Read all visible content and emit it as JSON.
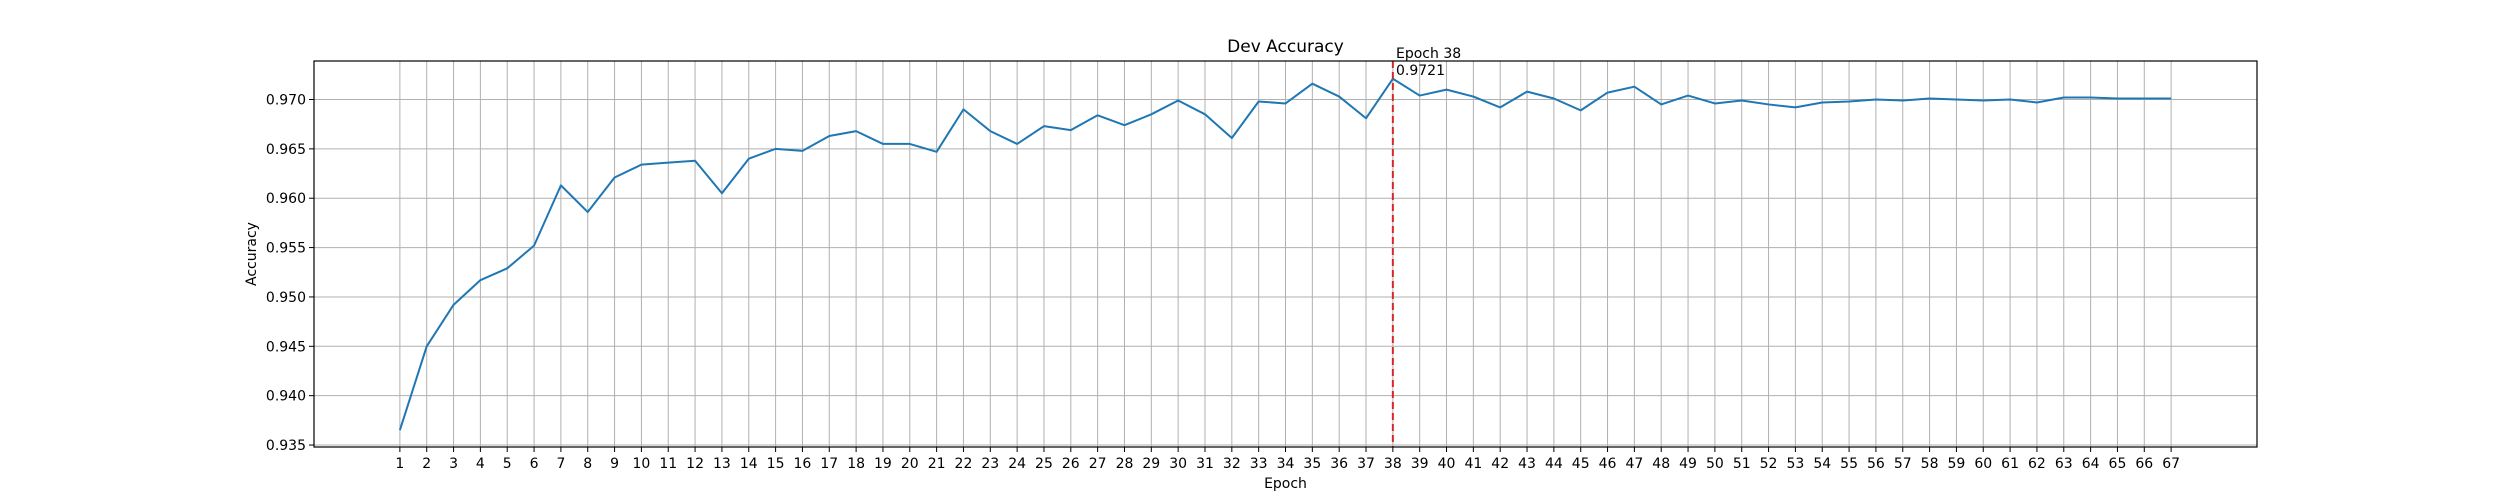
{
  "chart_data": {
    "type": "line",
    "title": "Dev Accuracy",
    "xlabel": "Epoch",
    "ylabel": "Accuracy",
    "x": [
      1,
      2,
      3,
      4,
      5,
      6,
      7,
      8,
      9,
      10,
      11,
      12,
      13,
      14,
      15,
      16,
      17,
      18,
      19,
      20,
      21,
      22,
      23,
      24,
      25,
      26,
      27,
      28,
      29,
      30,
      31,
      32,
      33,
      34,
      35,
      36,
      37,
      38,
      39,
      40,
      41,
      42,
      43,
      44,
      45,
      46,
      47,
      48,
      49,
      50,
      51,
      52,
      53,
      54,
      55,
      56,
      57,
      58,
      59,
      60,
      61,
      62,
      63,
      64,
      65,
      66,
      67
    ],
    "xticks": [
      "1",
      "2",
      "3",
      "4",
      "5",
      "6",
      "7",
      "8",
      "9",
      "10",
      "11",
      "12",
      "13",
      "14",
      "15",
      "16",
      "17",
      "18",
      "19",
      "20",
      "21",
      "22",
      "23",
      "24",
      "25",
      "26",
      "27",
      "28",
      "29",
      "30",
      "31",
      "32",
      "33",
      "34",
      "35",
      "36",
      "37",
      "38",
      "39",
      "40",
      "41",
      "42",
      "43",
      "44",
      "45",
      "46",
      "47",
      "48",
      "49",
      "50",
      "51",
      "52",
      "53",
      "54",
      "55",
      "56",
      "57",
      "58",
      "59",
      "60",
      "61",
      "62",
      "63",
      "64",
      "65",
      "66",
      "67"
    ],
    "yticks": [
      "0.935",
      "0.940",
      "0.945",
      "0.950",
      "0.955",
      "0.960",
      "0.965",
      "0.970"
    ],
    "ytick_values": [
      0.935,
      0.94,
      0.945,
      0.95,
      0.955,
      0.96,
      0.965,
      0.97
    ],
    "xlim": [
      -2.2,
      70.2
    ],
    "ylim": [
      0.9348,
      0.9739
    ],
    "grid": true,
    "series": [
      {
        "color": "#1f77b4",
        "values": [
          0.9365,
          0.945,
          0.9492,
          0.9517,
          0.9529,
          0.9552,
          0.9613,
          0.9586,
          0.9621,
          0.9634,
          0.9636,
          0.9638,
          0.9605,
          0.964,
          0.965,
          0.9648,
          0.9663,
          0.9668,
          0.9655,
          0.9655,
          0.9647,
          0.969,
          0.9668,
          0.9655,
          0.9673,
          0.9669,
          0.9684,
          0.9674,
          0.9685,
          0.9699,
          0.9685,
          0.9661,
          0.9698,
          0.9696,
          0.9716,
          0.9703,
          0.9681,
          0.9721,
          0.9704,
          0.971,
          0.9703,
          0.9692,
          0.9708,
          0.9701,
          0.9689,
          0.9707,
          0.9713,
          0.9695,
          0.9704,
          0.9696,
          0.9699,
          0.9695,
          0.9692,
          0.9697,
          0.9698,
          0.97,
          0.9699,
          0.9701,
          0.97,
          0.9699,
          0.97,
          0.9697,
          0.9702,
          0.9702,
          0.9701,
          0.9701,
          0.9701
        ]
      }
    ],
    "best_marker": {
      "epoch": 38,
      "value": 0.9721,
      "color": "#d62728",
      "label_line1": "Epoch 38",
      "label_line2": "0.9721"
    }
  }
}
